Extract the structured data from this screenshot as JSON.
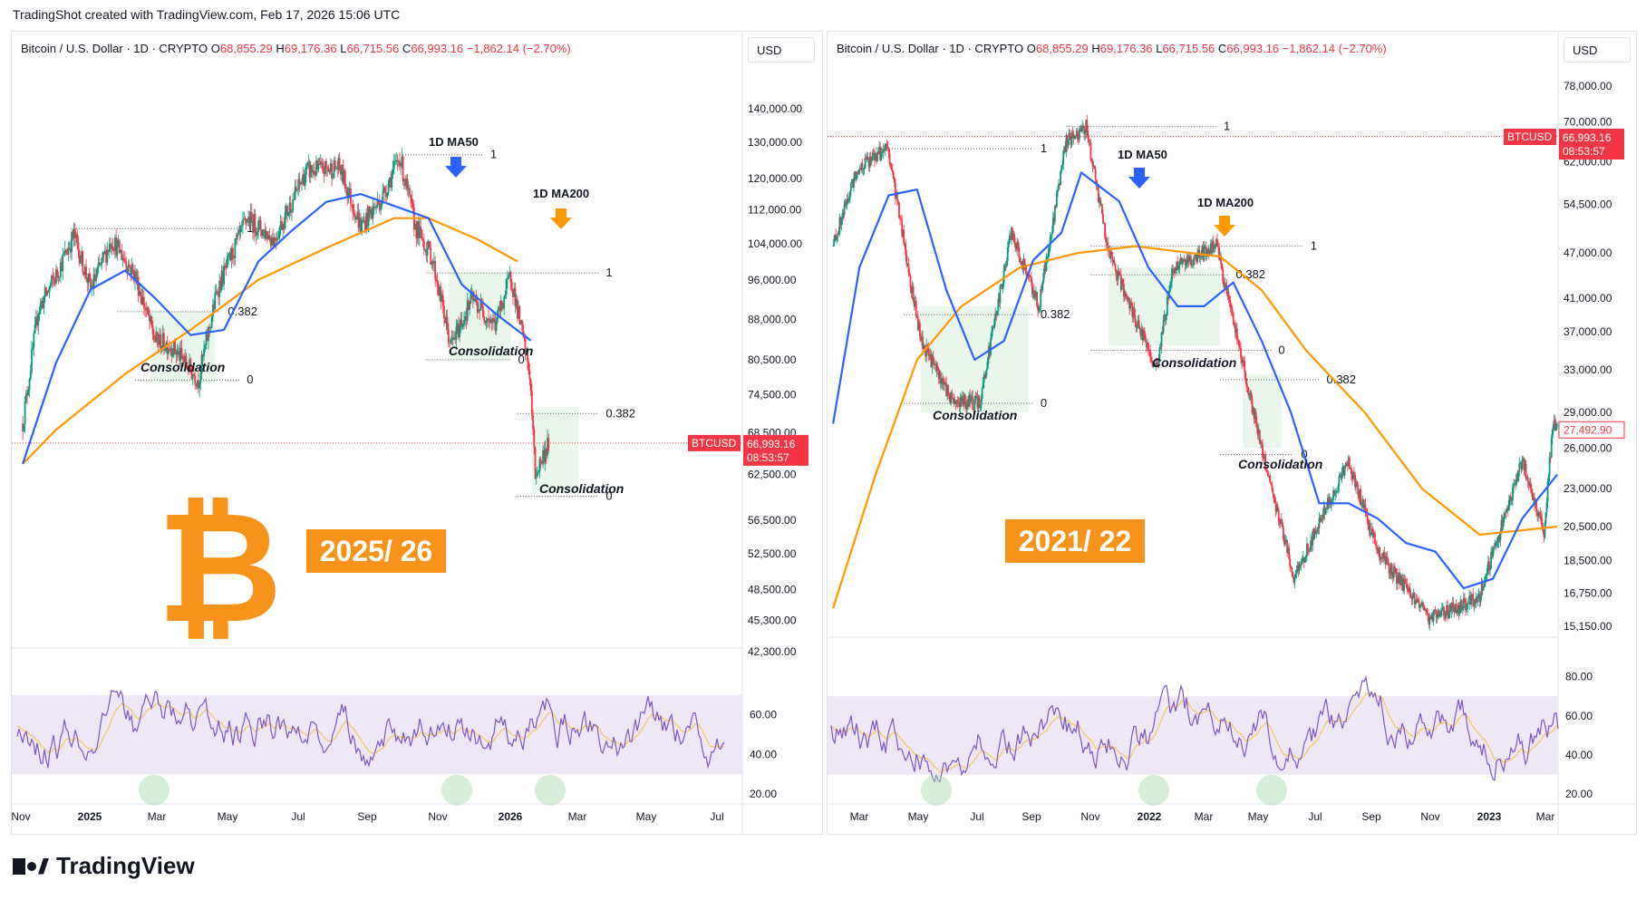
{
  "header": {
    "created_text": "TradingShot created with TradingView.com, Feb 17, 2026 15:06 UTC"
  },
  "footer": {
    "brand": "TradingView"
  },
  "colors": {
    "ma50": "#2962ff",
    "ma200": "#ff9800",
    "rsi": "#7e57c2",
    "rsi_ma": "#f5c342",
    "rsi_band": "#ede7f6",
    "up": "#089981",
    "down": "#f23645",
    "consolidation": "#e8f5e9",
    "label_bg": "#f7931a",
    "price_tag": "#f23645"
  },
  "panels": [
    {
      "id": "left",
      "legend": {
        "symbol": "Bitcoin / U.S. Dollar · 1D · CRYPTO",
        "o_label": "O",
        "o": "68,855.29",
        "h_label": "H",
        "h": "69,176.36",
        "l_label": "L",
        "l": "66,715.56",
        "c_label": "C",
        "c": "66,993.16",
        "change": "−1,862.14 (−2.70%)"
      },
      "currency": "USD",
      "big_label": "2025/ 26",
      "annotations": {
        "ma50": "1D MA50",
        "ma200": "1D MA200",
        "consolidation": "Consolidation"
      },
      "price_tag": {
        "symbol": "BTCUSD",
        "price": "66,993.16",
        "timer": "08:53:57"
      }
    },
    {
      "id": "right",
      "legend": {
        "symbol": "Bitcoin / U.S. Dollar · 1D · CRYPTO",
        "o_label": "O",
        "o": "68,855.29",
        "h_label": "H",
        "h": "69,176.36",
        "l_label": "L",
        "l": "66,715.56",
        "c_label": "C",
        "c": "66,993.16",
        "change": "−1,862.14 (−2.70%)"
      },
      "currency": "USD",
      "big_label": "2021/ 22",
      "annotations": {
        "ma50": "1D MA50",
        "ma200": "1D MA200",
        "consolidation": "Consolidation"
      },
      "price_tag": {
        "symbol": "BTCUSD",
        "price": "66,993.16",
        "timer": "08:53:57"
      },
      "last_price_tag": "27,492.90"
    }
  ],
  "chart_data": [
    {
      "type": "candlestick",
      "panel": "left",
      "series": [
        {
          "name": "BTCUSD",
          "values": [
            [
              "2024-11-01",
              70000
            ],
            [
              "2024-11-15",
              90000
            ],
            [
              "2024-12-01",
              97000
            ],
            [
              "2024-12-17",
              106000
            ],
            [
              "2025-01-01",
              94000
            ],
            [
              "2025-01-20",
              105000
            ],
            [
              "2025-02-10",
              97000
            ],
            [
              "2025-02-28",
              84000
            ],
            [
              "2025-03-15",
              83000
            ],
            [
              "2025-04-08",
              77000
            ],
            [
              "2025-04-25",
              94000
            ],
            [
              "2025-05-22",
              110000
            ],
            [
              "2025-06-15",
              105000
            ],
            [
              "2025-07-14",
              122000
            ],
            [
              "2025-08-13",
              123000
            ],
            [
              "2025-09-01",
              108000
            ],
            [
              "2025-09-20",
              115000
            ],
            [
              "2025-10-06",
              126000
            ],
            [
              "2025-10-20",
              108000
            ],
            [
              "2025-11-04",
              101000
            ],
            [
              "2025-11-21",
              83000
            ],
            [
              "2025-12-10",
              92000
            ],
            [
              "2025-12-31",
              87000
            ],
            [
              "2026-01-14",
              97000
            ],
            [
              "2026-01-31",
              78000
            ],
            [
              "2026-02-05",
              62500
            ],
            [
              "2026-02-17",
              66993
            ]
          ]
        },
        {
          "name": "1D MA50",
          "values": [
            [
              "2024-11-01",
              64000
            ],
            [
              "2024-12-01",
              80000
            ],
            [
              "2025-01-01",
              94000
            ],
            [
              "2025-02-01",
              98000
            ],
            [
              "2025-03-01",
              92000
            ],
            [
              "2025-04-01",
              85000
            ],
            [
              "2025-05-01",
              86000
            ],
            [
              "2025-06-01",
              100000
            ],
            [
              "2025-07-01",
              107000
            ],
            [
              "2025-08-01",
              114000
            ],
            [
              "2025-09-01",
              116000
            ],
            [
              "2025-10-01",
              113000
            ],
            [
              "2025-11-01",
              110000
            ],
            [
              "2025-12-01",
              95000
            ],
            [
              "2026-01-01",
              89000
            ],
            [
              "2026-02-01",
              84000
            ]
          ]
        },
        {
          "name": "1D MA200",
          "values": [
            [
              "2024-11-01",
              64000
            ],
            [
              "2024-12-01",
              69000
            ],
            [
              "2025-02-01",
              78000
            ],
            [
              "2025-04-01",
              86000
            ],
            [
              "2025-06-01",
              96000
            ],
            [
              "2025-08-01",
              103000
            ],
            [
              "2025-10-01",
              110000
            ],
            [
              "2025-11-01",
              110000
            ],
            [
              "2025-12-15",
              105000
            ],
            [
              "2026-01-20",
              100000
            ]
          ]
        }
      ],
      "yaxis_ticks": [
        "140,000.00",
        "130,000.00",
        "120,000.00",
        "112,000.00",
        "104,000.00",
        "96,000.00",
        "88,000.00",
        "80,500.00",
        "74,500.00",
        "68,500.00",
        "62,500.00",
        "56,500.00",
        "52,500.00",
        "48,500.00",
        "45,300.00",
        "42,300.00"
      ],
      "xaxis_ticks": [
        "Nov",
        "2025",
        "Mar",
        "May",
        "Jul",
        "Sep",
        "Nov",
        "2026",
        "Mar",
        "May",
        "Jul"
      ],
      "fib_levels": [
        "1",
        "0.382",
        "0"
      ],
      "scale": "log",
      "rsi": {
        "ticks": [
          "60.00",
          "40.00",
          "20.00"
        ],
        "band": [
          30,
          70
        ]
      }
    },
    {
      "type": "candlestick",
      "panel": "right",
      "series": [
        {
          "name": "BTCUSD",
          "values": [
            [
              "2021-02-15",
              48000
            ],
            [
              "2021-03-13",
              61000
            ],
            [
              "2021-04-14",
              64500
            ],
            [
              "2021-05-19",
              36000
            ],
            [
              "2021-06-22",
              30000
            ],
            [
              "2021-07-20",
              29800
            ],
            [
              "2021-08-23",
              50000
            ],
            [
              "2021-09-21",
              40000
            ],
            [
              "2021-10-20",
              66000
            ],
            [
              "2021-11-10",
              69000
            ],
            [
              "2021-12-04",
              47000
            ],
            [
              "2022-01-24",
              33000
            ],
            [
              "2022-02-10",
              45000
            ],
            [
              "2022-03-28",
              48000
            ],
            [
              "2022-05-12",
              27000
            ],
            [
              "2022-06-18",
              17600
            ],
            [
              "2022-08-15",
              25000
            ],
            [
              "2022-09-15",
              19000
            ],
            [
              "2022-11-09",
              15500
            ],
            [
              "2022-12-31",
              16500
            ],
            [
              "2023-02-15",
              25000
            ],
            [
              "2023-03-10",
              20000
            ],
            [
              "2023-03-20",
              28500
            ],
            [
              "2023-03-24",
              27493
            ]
          ]
        },
        {
          "name": "1D MA50",
          "values": [
            [
              "2021-02-15",
              28000
            ],
            [
              "2021-03-15",
              45000
            ],
            [
              "2021-04-15",
              56000
            ],
            [
              "2021-05-15",
              57000
            ],
            [
              "2021-06-15",
              42000
            ],
            [
              "2021-07-15",
              34000
            ],
            [
              "2021-08-15",
              36000
            ],
            [
              "2021-09-15",
              46000
            ],
            [
              "2021-10-15",
              50000
            ],
            [
              "2021-11-05",
              60000
            ],
            [
              "2021-12-15",
              55000
            ],
            [
              "2022-01-15",
              45000
            ],
            [
              "2022-02-15",
              40000
            ],
            [
              "2022-03-15",
              40000
            ],
            [
              "2022-04-15",
              43000
            ],
            [
              "2022-05-15",
              36000
            ],
            [
              "2022-06-15",
              29000
            ],
            [
              "2022-07-15",
              22000
            ],
            [
              "2022-08-15",
              22000
            ],
            [
              "2022-09-15",
              21000
            ],
            [
              "2022-10-15",
              19500
            ],
            [
              "2022-11-15",
              19000
            ],
            [
              "2022-12-15",
              17000
            ],
            [
              "2023-01-15",
              17500
            ],
            [
              "2023-02-15",
              21000
            ],
            [
              "2023-03-24",
              24000
            ]
          ]
        },
        {
          "name": "1D MA200",
          "values": [
            [
              "2021-02-15",
              16000
            ],
            [
              "2021-04-01",
              24000
            ],
            [
              "2021-05-15",
              34000
            ],
            [
              "2021-07-01",
              40000
            ],
            [
              "2021-09-01",
              45000
            ],
            [
              "2021-11-01",
              47000
            ],
            [
              "2022-01-01",
              48000
            ],
            [
              "2022-04-01",
              46500
            ],
            [
              "2022-05-15",
              42000
            ],
            [
              "2022-07-01",
              35000
            ],
            [
              "2022-09-01",
              29000
            ],
            [
              "2022-11-01",
              23000
            ],
            [
              "2023-01-01",
              20000
            ],
            [
              "2023-03-24",
              20500
            ]
          ]
        }
      ],
      "yaxis_ticks": [
        "78,000.00",
        "70,000.00",
        "62,000.00",
        "54,500.00",
        "47,000.00",
        "41,000.00",
        "37,000.00",
        "33,000.00",
        "29,000.00",
        "26,000.00",
        "23,000.00",
        "20,500.00",
        "18,500.00",
        "16,750.00",
        "15,150.00"
      ],
      "xaxis_ticks": [
        "Mar",
        "May",
        "Jul",
        "Sep",
        "Nov",
        "2022",
        "Mar",
        "May",
        "Jul",
        "Sep",
        "Nov",
        "2023",
        "Mar"
      ],
      "fib_levels": [
        "1",
        "0.382",
        "0"
      ],
      "scale": "log",
      "rsi": {
        "ticks": [
          "80.00",
          "60.00",
          "40.00",
          "20.00"
        ],
        "band": [
          30,
          70
        ]
      }
    }
  ]
}
